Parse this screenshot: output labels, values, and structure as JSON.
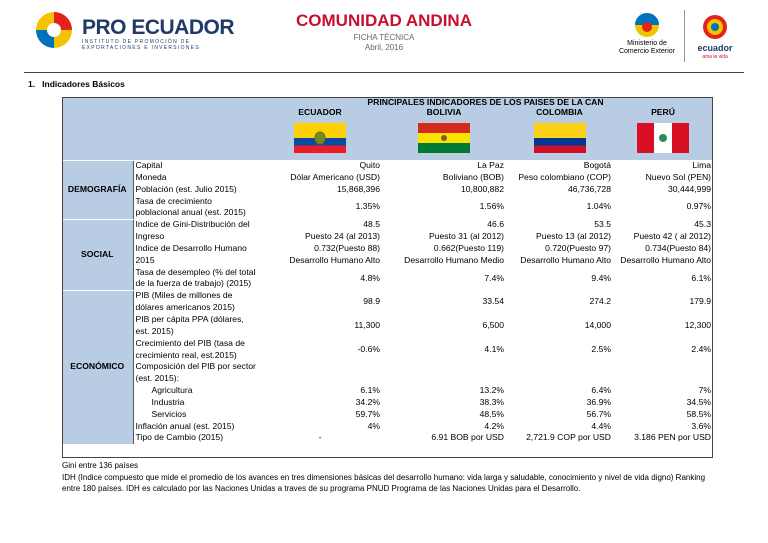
{
  "header": {
    "logo_name": "PRO ECUADOR",
    "logo_subtitle": "INSTITUTO DE PROMOCIÓN DE EXPORTACIONES E INVERSIONES",
    "title": "COMUNIDAD ANDINA",
    "subtitle": "FICHA TÉCNICA",
    "date": "Abril, 2016",
    "ministry": [
      "Ministerio de",
      "Comercio Exterior"
    ],
    "brand": "ecuador",
    "brand_tagline": "ama la vida"
  },
  "section_heading": "1.   Indicadores Básicos",
  "table": {
    "title": "PRINCIPALES INDICADORES DE LOS PAISES DE LA CAN",
    "countries": [
      "ECUADOR",
      "BOLIVIA",
      "COLOMBIA",
      "PERÚ"
    ],
    "sections": [
      {
        "name": "DEMOGRAFÍA",
        "rows": [
          {
            "label": "Capital",
            "values": [
              [
                "Quito"
              ],
              [
                "La Paz"
              ],
              [
                "Bogotá"
              ],
              [
                "Lima"
              ]
            ]
          },
          {
            "label": "Moneda",
            "values": [
              [
                "Dólar Americano (USD)"
              ],
              [
                "Boliviano (BOB)"
              ],
              [
                "Peso colombiano (COP)"
              ],
              [
                "Nuevo Sol (PEN)"
              ]
            ]
          },
          {
            "label": "Población (est. Julio 2015)",
            "values": [
              [
                "15,868,396"
              ],
              [
                "10,800,882"
              ],
              [
                "46,736,728"
              ],
              [
                "30,444,999"
              ]
            ]
          },
          {
            "label": "Tasa de crecimiento poblacional anual (est. 2015)",
            "values": [
              [
                "1.35%"
              ],
              [
                "1.56%"
              ],
              [
                "1.04%"
              ],
              [
                "0.97%"
              ]
            ]
          }
        ]
      },
      {
        "name": "SOCIAL",
        "rows": [
          {
            "label": "Indice de Gini-Distribución del Ingreso",
            "values": [
              [
                "48.5",
                "Puesto 24 (al 2013)"
              ],
              [
                "46.6",
                "Puesto 31 (al 2012)"
              ],
              [
                "53.5",
                "Puesto 13 (al 2012)"
              ],
              [
                "45.3",
                "Puesto 42 ( al 2012)"
              ]
            ]
          },
          {
            "label": "Indice de Desarrollo Humano 2015",
            "values": [
              [
                "0.732(Puesto 88)",
                "Desarrollo Humano Alto"
              ],
              [
                "0.662(Puesto 119)",
                "Desarrollo Humano Medio"
              ],
              [
                "0.720(Puesto 97)",
                "Desarrollo Humano Alto"
              ],
              [
                "0.734(Puesto 84)",
                "Desarrollo Humano Alto"
              ]
            ]
          },
          {
            "label": "Tasa de desempleo (% del total de la fuerza de trabajo) (2015)",
            "values": [
              [
                "4.8%"
              ],
              [
                "7.4%"
              ],
              [
                "9.4%"
              ],
              [
                "6.1%"
              ]
            ]
          }
        ]
      },
      {
        "name": "ECONÓMICO",
        "rows": [
          {
            "label": "PIB (Miles de millones de dólares americanos 2015)",
            "values": [
              [
                "98.9"
              ],
              [
                "33.54"
              ],
              [
                "274.2"
              ],
              [
                "179.9"
              ]
            ]
          },
          {
            "label": "PIB per cápita PPA (dólares, est. 2015)",
            "values": [
              [
                "11,300"
              ],
              [
                "6,500"
              ],
              [
                "14,000"
              ],
              [
                "12,300"
              ]
            ]
          },
          {
            "label": "Crecimiento del PIB (tasa de crecimiento real, est.2015)",
            "values": [
              [
                "-0.6%"
              ],
              [
                "4.1%"
              ],
              [
                "2.5%"
              ],
              [
                "2.4%"
              ]
            ]
          },
          {
            "label": "Composición del PIB por sector (est. 2015):",
            "values": [],
            "parts": [
              {
                "label": "Agricultura",
                "values": [
                  [
                    "6.1%"
                  ],
                  [
                    "13.2%"
                  ],
                  [
                    "6.4%"
                  ],
                  [
                    "7%"
                  ]
                ]
              },
              {
                "label": "Industria",
                "values": [
                  [
                    "34.2%"
                  ],
                  [
                    "38.3%"
                  ],
                  [
                    "36.9%"
                  ],
                  [
                    "34.5%"
                  ]
                ]
              },
              {
                "label": "Servicios",
                "values": [
                  [
                    "59.7%"
                  ],
                  [
                    "48.5%"
                  ],
                  [
                    "56.7%"
                  ],
                  [
                    "58.5%"
                  ]
                ]
              }
            ]
          },
          {
            "label": "Inflación anual (est. 2015)",
            "values": [
              [
                "4%"
              ],
              [
                "4.2%"
              ],
              [
                "4.4%"
              ],
              [
                "3.6%"
              ]
            ]
          },
          {
            "label": "Tipo de Cambio (2015)",
            "values": [
              [
                "-"
              ],
              [
                "6.91 BOB por USD"
              ],
              [
                "2,721.9 COP por USD"
              ],
              [
                "3.186 PEN por USD"
              ]
            ]
          }
        ]
      }
    ]
  },
  "notes": [
    "Gini entre 136 países",
    "IDH (Indice compuesto que mide el promedio de los avances en tres dimensiones básicas del desarrollo humano: vida larga y saludable, conocimiento y nivel de vida digno) Ranking entre 180 países. IDH es calculado por las Naciones Unidas a traves de su programa PNUD Programa de las Naciones Unidas para el Desarrollo."
  ]
}
